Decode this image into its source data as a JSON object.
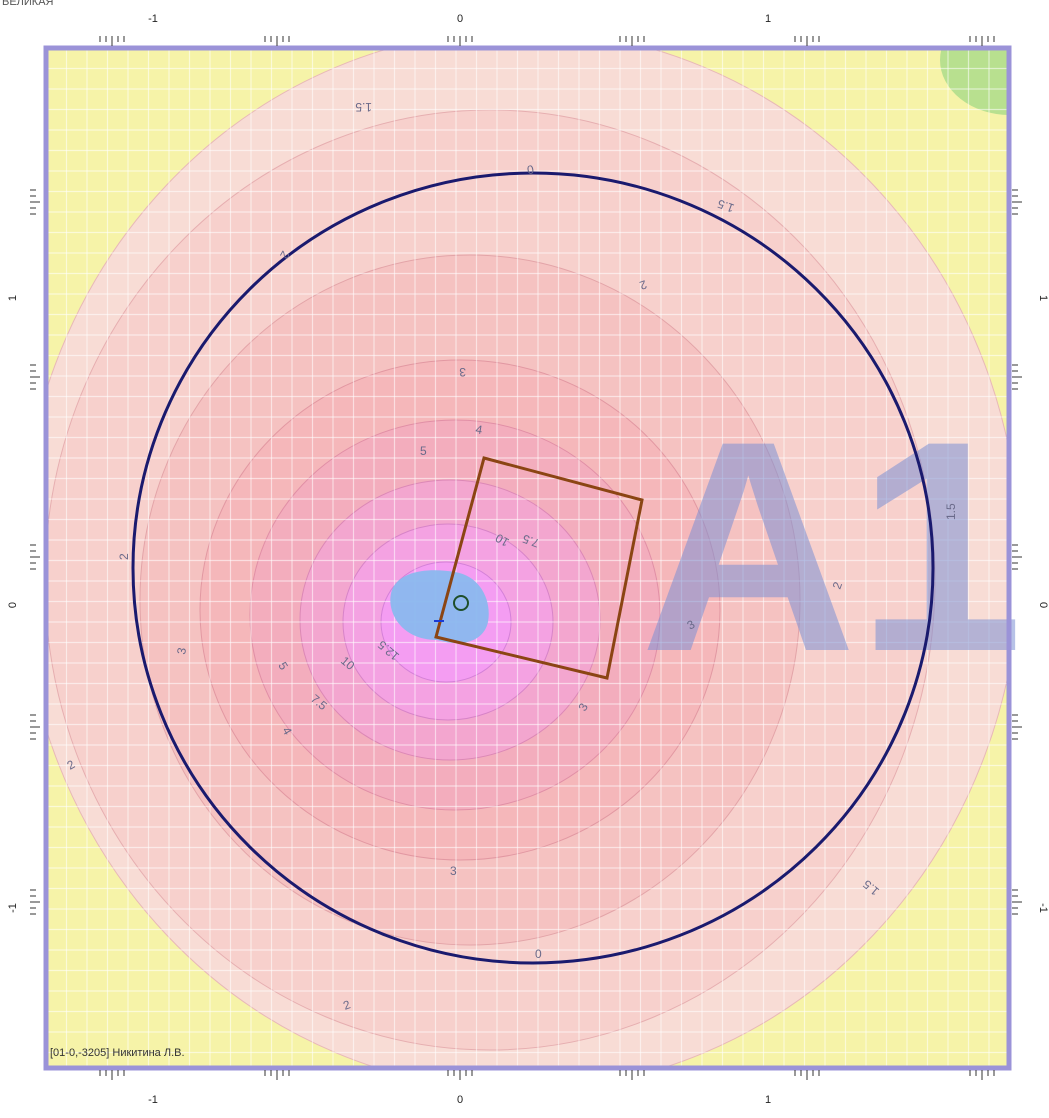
{
  "header": {
    "corner_text": "ВЕЛИКАЯ"
  },
  "axes": {
    "top_ticks": [
      "-1",
      "0",
      "1"
    ],
    "bottom_ticks": [
      "-1",
      "0",
      "1"
    ],
    "left_ticks": [
      "1",
      "0",
      "-1"
    ],
    "right_ticks": [
      "1",
      "0",
      "-1"
    ]
  },
  "contour_labels": [
    {
      "text": "1.5",
      "rot": 180
    },
    {
      "text": "0",
      "rot": 170
    },
    {
      "text": "1.5",
      "rot": 200
    },
    {
      "text": "2",
      "rot": 120
    },
    {
      "text": "2",
      "rot": 160
    },
    {
      "text": "3",
      "rot": 180
    },
    {
      "text": "4",
      "rot": 10
    },
    {
      "text": "5",
      "rot": 0
    },
    {
      "text": "7.5",
      "rot": 200
    },
    {
      "text": "10",
      "rot": 210
    },
    {
      "text": "2",
      "rot": 270
    },
    {
      "text": "3",
      "rot": 280
    },
    {
      "text": "10",
      "rot": 40
    },
    {
      "text": "7.5",
      "rot": 40
    },
    {
      "text": "5",
      "rot": 60
    },
    {
      "text": "4",
      "rot": 60
    },
    {
      "text": "3",
      "rot": 300
    },
    {
      "text": "2",
      "rot": 290
    },
    {
      "text": "3",
      "rot": 330
    },
    {
      "text": "2",
      "rot": 330
    },
    {
      "text": "12.5",
      "rot": 220
    },
    {
      "text": "1.5",
      "rot": 270
    },
    {
      "text": "1.5",
      "rot": 220
    },
    {
      "text": "2",
      "rot": 340
    },
    {
      "text": "3",
      "rot": 0
    },
    {
      "text": "0",
      "rot": 0
    }
  ],
  "watermark": "A1",
  "footer": {
    "label": "[01-0,-3205] Никитина Л.В."
  },
  "colors": {
    "zone_yellow": "#f6f3a8",
    "zone_green": "#b8e08f",
    "contour_pink_light": "#f8d8d3",
    "contour_pink_mid": "#f4b7b8",
    "contour_magenta": "#f49df2",
    "source_blue": "#8ab8ee",
    "boundary_circle": "#1a1a6e",
    "site_square": "#8b4513",
    "frame": "#9b93d8",
    "watermark": "#7c8fd4"
  }
}
